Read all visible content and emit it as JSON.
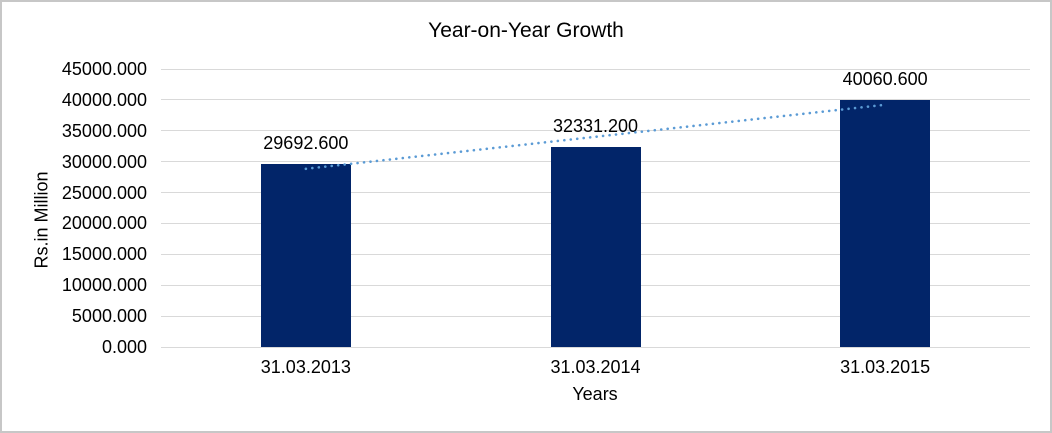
{
  "chart_data": {
    "type": "bar",
    "title": "Year-on-Year Growth",
    "xlabel": "Years",
    "ylabel": "Rs.in Million",
    "categories": [
      "31.03.2013",
      "31.03.2014",
      "31.03.2015"
    ],
    "series": [
      {
        "name": "Rs.in Million",
        "values": [
          29692.6,
          32331.2,
          40060.6
        ],
        "value_labels": [
          "29692.600",
          "32331.200",
          "40060.600"
        ]
      }
    ],
    "ylim": [
      0,
      45000
    ],
    "ytick_step": 5000,
    "ytick_labels": [
      "0.000",
      "5000.000",
      "10000.000",
      "15000.000",
      "20000.000",
      "25000.000",
      "30000.000",
      "35000.000",
      "40000.000",
      "45000.000"
    ],
    "grid": "horizontal-only",
    "legend": "none",
    "trendline": {
      "type": "linear",
      "style": "dotted",
      "series": "Rs.in Million"
    },
    "colors": {
      "bar": "#022569",
      "trendline": "#5b9bd5",
      "gridline": "#d9d9d9",
      "text": "#000000",
      "background": "#ffffff",
      "frame_border": "#c7c7c7"
    }
  }
}
